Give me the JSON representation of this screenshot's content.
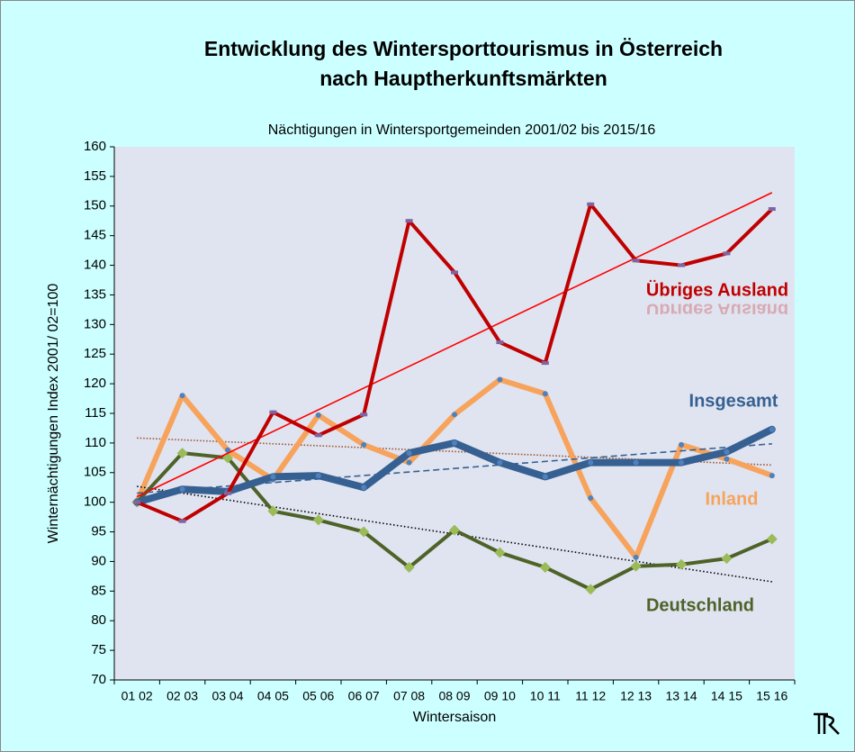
{
  "chart_data": {
    "type": "line",
    "title": [
      "Entwicklung des Wintersporttourismus in Österreich",
      "nach Hauptherkunftsmärkten"
    ],
    "subtitle": "Nächtigungen in Wintersportgemeinden 2001/02 bis 2015/16",
    "x_label": "Wintersaison",
    "y_label": "Winternächtigungen Index  2001/ 02=100",
    "categories": [
      "01 02",
      "02 03",
      "03 04",
      "04 05",
      "05 06",
      "06 07",
      "07 08",
      "08 09",
      "09 10",
      "10 11",
      "11 12",
      "12 13",
      "13 14",
      "14 15",
      "15 16"
    ],
    "ylim": [
      70,
      160
    ],
    "yticks": [
      70,
      75,
      80,
      85,
      90,
      95,
      100,
      105,
      110,
      115,
      120,
      125,
      130,
      135,
      140,
      145,
      150,
      155,
      160
    ],
    "grid": false,
    "series": [
      {
        "name": "Inland",
        "color": "#f7a35c",
        "marker": "circle",
        "marker_color": "#4f81bd",
        "width": 6,
        "values": [
          100,
          118,
          108.8,
          103.8,
          114.7,
          109.7,
          106.7,
          114.8,
          120.7,
          118.3,
          100.7,
          90.7,
          109.7,
          107.3,
          104.5
        ],
        "trendline": {
          "color": "#a0522d",
          "dash": "1.5 2"
        }
      },
      {
        "name": "Deutschland",
        "color": "#4f6228",
        "marker": "diamond",
        "marker_color": "#9bbb59",
        "width": 4,
        "values": [
          100,
          108.3,
          107.5,
          98.5,
          97,
          95,
          89,
          95.3,
          91.5,
          89,
          85.3,
          89.2,
          89.5,
          90.5,
          93.8
        ],
        "trendline": {
          "color": "#000000",
          "dash": "1.5 2.5"
        }
      },
      {
        "name": "Insgesamt",
        "color": "#376092",
        "marker": "circle",
        "marker_color": "#4f81bd",
        "width": 8,
        "values": [
          100,
          102.2,
          101.8,
          104.3,
          104.5,
          102.5,
          108.3,
          110,
          106.7,
          104.3,
          106.7,
          106.7,
          106.7,
          108.5,
          112.3
        ],
        "trendline": {
          "color": "#376092",
          "dash": "7 4"
        }
      },
      {
        "name": "Übriges Ausland",
        "color": "#c00000",
        "marker": "square",
        "marker_color": "#8064a2",
        "width": 4,
        "values": [
          100,
          96.8,
          101.5,
          115.2,
          111.3,
          114.8,
          147.5,
          138.8,
          127,
          123.5,
          150.3,
          140.8,
          140,
          142,
          149.5
        ],
        "trendline": {
          "color": "#ff0000",
          "dash": "none"
        }
      }
    ]
  }
}
